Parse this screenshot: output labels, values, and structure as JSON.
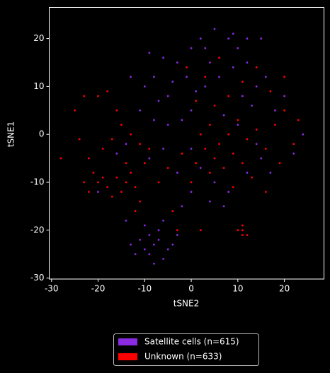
{
  "chart_data": {
    "type": "scatter",
    "xlabel": "tSNE2",
    "ylabel": "tSNE1",
    "xlim": [
      -30.5,
      28.5
    ],
    "ylim": [
      -30.2,
      26.5
    ],
    "xticks": [
      -30,
      -20,
      -10,
      0,
      10,
      20
    ],
    "yticks": [
      -30,
      -20,
      -10,
      0,
      10,
      20
    ],
    "legend": "lower center",
    "series": [
      {
        "name": "Satellite cells (n=615)",
        "color": "#8a2be2",
        "x": [
          -8,
          -9,
          -7,
          -10,
          -6,
          -11,
          -5,
          -8,
          -9,
          -12,
          -7,
          -4,
          -6,
          -10,
          -13,
          -3,
          -10,
          -8,
          -5,
          -3,
          0,
          2,
          5,
          8,
          10,
          12,
          14,
          6,
          3,
          0,
          -2,
          -5,
          -8,
          -11,
          -13,
          -6,
          -1,
          4,
          9,
          11,
          13,
          16,
          18,
          15,
          12,
          8,
          5,
          2,
          0,
          -3,
          -6,
          -9,
          -7,
          -4,
          1,
          7,
          10,
          14,
          17,
          4,
          7,
          0,
          -2,
          9,
          3,
          -14,
          -16,
          12,
          24,
          22,
          20,
          15,
          -9,
          -20,
          -14
        ],
        "y": [
          -23,
          -25,
          -22,
          -24,
          -26,
          -22,
          -24,
          -27,
          -21,
          -25,
          -20,
          -23,
          -18,
          -19,
          -23,
          -21,
          10,
          12,
          8,
          15,
          18,
          20,
          22,
          20,
          18,
          15,
          10,
          12,
          10,
          5,
          3,
          2,
          3,
          5,
          12,
          16,
          12,
          15,
          14,
          8,
          6,
          12,
          5,
          -5,
          -8,
          -12,
          -10,
          -7,
          -3,
          -8,
          -3,
          -5,
          7,
          11,
          9,
          4,
          2,
          -2,
          -8,
          -14,
          -15,
          -12,
          -15,
          21,
          18,
          -2,
          -4,
          20,
          0,
          -4,
          8,
          20,
          17,
          -12,
          -18
        ]
      },
      {
        "name": "Unknown (n=633)",
        "color": "#ff0000",
        "x": [
          -25,
          -24,
          -23,
          -22,
          -21,
          -20,
          -19,
          -18,
          -17,
          -16,
          -15,
          -14,
          -13,
          -12,
          -11,
          -10,
          -9,
          -19,
          -17,
          -15,
          -13,
          -11,
          -20,
          -18,
          -22,
          -28,
          -16,
          -23,
          -14,
          -12,
          2,
          4,
          6,
          8,
          10,
          12,
          14,
          16,
          18,
          20,
          22,
          5,
          7,
          9,
          11,
          13,
          3,
          1,
          -2,
          5,
          8,
          11,
          3,
          -1,
          6,
          14,
          17,
          19,
          23,
          0,
          4,
          9,
          16,
          20,
          -5,
          -7,
          1,
          11,
          11,
          10,
          12,
          11,
          -4,
          2,
          -3
        ],
        "y": [
          5,
          -1,
          8,
          -5,
          -8,
          -10,
          -9,
          -11,
          -13,
          -9,
          -12,
          -10,
          -8,
          -11,
          -14,
          -6,
          -3,
          -3,
          -1,
          2,
          0,
          -2,
          8,
          9,
          -12,
          -5,
          5,
          -10,
          -6,
          -16,
          0,
          2,
          -2,
          0,
          3,
          -1,
          1,
          -3,
          2,
          5,
          -2,
          -5,
          -7,
          -4,
          -6,
          -9,
          -3,
          -6,
          -4,
          6,
          8,
          11,
          12,
          14,
          16,
          14,
          9,
          -6,
          3,
          -10,
          -8,
          -11,
          -12,
          12,
          -7,
          -10,
          7,
          -19,
          -20,
          -20,
          -21,
          -21,
          -16,
          -20,
          -20
        ]
      }
    ]
  }
}
